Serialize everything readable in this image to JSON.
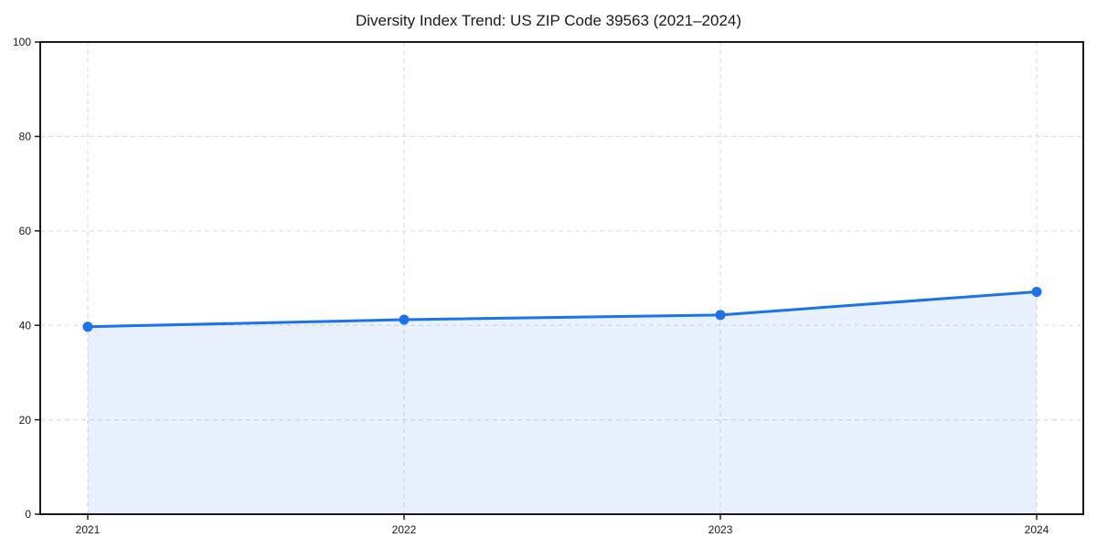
{
  "chart_data": {
    "type": "area",
    "title": "Diversity Index Trend: US ZIP Code 39563 (2021–2024)",
    "xlabel": "",
    "ylabel": "",
    "categories": [
      "2021",
      "2022",
      "2023",
      "2024"
    ],
    "x": [
      2021,
      2022,
      2023,
      2024
    ],
    "series": [
      {
        "name": "Diversity Index",
        "values": [
          39.7,
          41.2,
          42.2,
          47.1
        ]
      }
    ],
    "ylim": [
      0,
      100
    ],
    "yticks": [
      0,
      20,
      40,
      60,
      80,
      100
    ],
    "grid": "dashed, light gray, horizontal at y-ticks and vertical at each year",
    "legend": "none",
    "colors": {
      "line": "#1a73e8",
      "marker": "#1a73e8",
      "fill": "rgba(26,115,232,0.10)",
      "grid": "#dfdfdf",
      "axis": "#1a1a1a",
      "text": "#1a1a1a",
      "background": "#ffffff"
    }
  }
}
